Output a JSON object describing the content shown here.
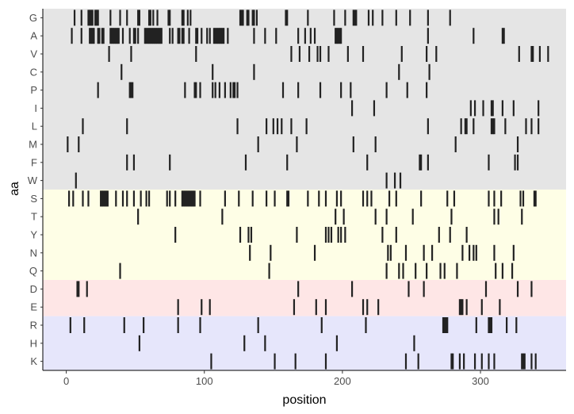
{
  "chart_data": {
    "type": "barcode",
    "xlabel": "position",
    "ylabel": "aa",
    "xlim": [
      -17,
      362
    ],
    "xticks": [
      0,
      100,
      200,
      300
    ],
    "grid": false,
    "legend": "none",
    "colors": {
      "hydrophobic_band": "#e5e5e5",
      "polar_band": "#fefee6",
      "acidic_band": "#fee6e6",
      "basic_band": "#e6e6fb",
      "mark": "#222222",
      "axis": "#000000"
    },
    "bands": [
      {
        "rows": [
          "G",
          "A",
          "V",
          "C",
          "P",
          "I",
          "L",
          "M",
          "F",
          "W"
        ],
        "color_key": "hydrophobic_band"
      },
      {
        "rows": [
          "S",
          "T",
          "Y",
          "N",
          "Q"
        ],
        "color_key": "polar_band"
      },
      {
        "rows": [
          "D",
          "E"
        ],
        "color_key": "acidic_band"
      },
      {
        "rows": [
          "R",
          "H",
          "K"
        ],
        "color_key": "basic_band"
      }
    ],
    "rows": [
      {
        "aa": "G",
        "positions": [
          6,
          11,
          16,
          17,
          18,
          19,
          21,
          22,
          23,
          32,
          39,
          44,
          52,
          53,
          60,
          61,
          63,
          66,
          74,
          75,
          84,
          85,
          88,
          90,
          126,
          127,
          128,
          131,
          132,
          135,
          136,
          138,
          159,
          160,
          175,
          194,
          202,
          208,
          209,
          210,
          219,
          222,
          229,
          239,
          249,
          262,
          278
        ]
      },
      {
        "aa": "A",
        "positions": [
          4,
          11,
          17,
          18,
          19,
          20,
          23,
          24,
          26,
          27,
          32,
          33,
          34,
          35,
          36,
          37,
          38,
          41,
          46,
          49,
          50,
          52,
          57,
          58,
          59,
          60,
          61,
          62,
          63,
          64,
          65,
          66,
          67,
          68,
          69,
          75,
          77,
          81,
          82,
          84,
          85,
          89,
          94,
          95,
          98,
          102,
          104,
          107,
          108,
          109,
          110,
          111,
          112,
          113,
          114,
          117,
          136,
          144,
          152,
          168,
          173,
          177,
          180,
          195,
          196,
          197,
          198,
          199,
          262,
          295,
          316,
          317
        ]
      },
      {
        "aa": "V",
        "positions": [
          31,
          47,
          94,
          163,
          169,
          176,
          182,
          184,
          190,
          204,
          215,
          243,
          261,
          268,
          328,
          337,
          338,
          343,
          349
        ]
      },
      {
        "aa": "C",
        "positions": [
          40,
          106,
          136,
          241,
          263
        ]
      },
      {
        "aa": "P",
        "positions": [
          23,
          46,
          47,
          48,
          86,
          93,
          94,
          97,
          106,
          108,
          111,
          115,
          119,
          121,
          122,
          124,
          157,
          168,
          184,
          199,
          206,
          232,
          247,
          261
        ]
      },
      {
        "aa": "I",
        "positions": [
          207,
          223,
          293,
          296,
          302,
          308,
          309,
          316,
          324,
          342
        ]
      },
      {
        "aa": "L",
        "positions": [
          12,
          44,
          124,
          145,
          150,
          153,
          156,
          163,
          174,
          262,
          286,
          289,
          290,
          295,
          308,
          309,
          310,
          318,
          333,
          337,
          342
        ]
      },
      {
        "aa": "M",
        "positions": [
          1,
          9,
          139,
          167,
          208,
          224,
          282,
          327
        ]
      },
      {
        "aa": "F",
        "positions": [
          44,
          49,
          75,
          130,
          160,
          218,
          256,
          257,
          262,
          306,
          325,
          327
        ]
      },
      {
        "aa": "W",
        "positions": [
          7,
          232,
          238,
          242
        ]
      },
      {
        "aa": "S",
        "positions": [
          2,
          5,
          12,
          16,
          25,
          26,
          27,
          28,
          29,
          30,
          36,
          41,
          44,
          49,
          54,
          58,
          60,
          73,
          75,
          79,
          84,
          85,
          86,
          87,
          88,
          89,
          90,
          91,
          92,
          93,
          97,
          115,
          125,
          135,
          145,
          151,
          160,
          161,
          175,
          183,
          188,
          196,
          199,
          215,
          218,
          221,
          234,
          239,
          257,
          276,
          281,
          306,
          310,
          315,
          329,
          331,
          339,
          340
        ]
      },
      {
        "aa": "T",
        "positions": [
          52,
          113,
          195,
          201,
          224,
          232,
          251,
          279,
          310,
          313,
          330
        ]
      },
      {
        "aa": "Y",
        "positions": [
          79,
          126,
          132,
          134,
          167,
          188,
          190,
          192,
          197,
          199,
          202,
          229,
          239,
          270,
          278,
          290
        ]
      },
      {
        "aa": "N",
        "positions": [
          133,
          148,
          180,
          233,
          235,
          246,
          259,
          265,
          287,
          292,
          295,
          297,
          310,
          324
        ]
      },
      {
        "aa": "Q",
        "positions": [
          39,
          147,
          232,
          241,
          244,
          253,
          261,
          271,
          274,
          283,
          311,
          316,
          323
        ]
      },
      {
        "aa": "D",
        "positions": [
          8,
          9,
          15,
          168,
          207,
          248,
          259,
          304,
          327,
          337
        ]
      },
      {
        "aa": "E",
        "positions": [
          81,
          98,
          104,
          165,
          181,
          188,
          215,
          218,
          226,
          285,
          286,
          287,
          290,
          301,
          314
        ]
      },
      {
        "aa": "R",
        "positions": [
          3,
          13,
          42,
          56,
          81,
          97,
          139,
          185,
          217,
          273,
          274,
          275,
          276,
          297,
          306,
          307,
          308,
          319,
          326
        ]
      },
      {
        "aa": "H",
        "positions": [
          53,
          129,
          144,
          196,
          252
        ]
      },
      {
        "aa": "K",
        "positions": [
          105,
          151,
          166,
          188,
          246,
          255,
          279,
          280,
          285,
          288,
          296,
          301,
          306,
          310,
          330,
          331,
          332,
          337,
          340
        ]
      }
    ]
  }
}
